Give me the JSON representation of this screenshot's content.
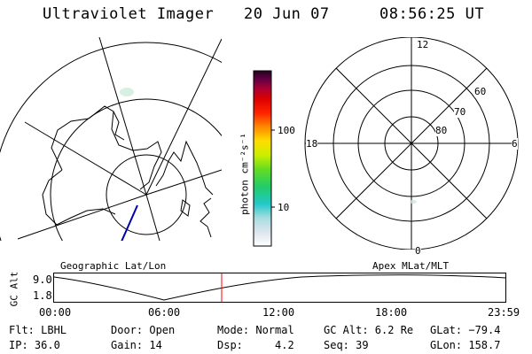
{
  "header": {
    "title": "Ultraviolet Imager",
    "date": "20 Jun 07",
    "time": "08:56:25 UT"
  },
  "colorbar": {
    "unit_label": "photon cm⁻²s⁻¹",
    "ticks": [
      "100",
      "10"
    ]
  },
  "left_panel": {
    "caption": "Geographic Lat/Lon"
  },
  "right_panel": {
    "caption": "Apex MLat/MLT",
    "mlt_labels": {
      "top": "12",
      "left": "18",
      "right": "6",
      "bottom": "0"
    },
    "lat_labels": [
      "60",
      "70",
      "80"
    ]
  },
  "timeline": {
    "ylabel": "GC Alt",
    "ytick_high": "9.0",
    "ytick_low": "1.8",
    "xticks": [
      "00:00",
      "06:00",
      "12:00",
      "18:00",
      "23:59"
    ],
    "marker_color": "#ff0000"
  },
  "info": [
    [
      {
        "label": "Flt: LBHL"
      },
      {
        "label": "IP: 36.0"
      }
    ],
    [
      {
        "label": "Door: Open"
      },
      {
        "label": "Gain: 14"
      }
    ],
    [
      {
        "label": "Mode: Normal"
      },
      {
        "label": "Dsp:     4.2"
      }
    ],
    [
      {
        "label": "GC Alt: 6.2 Re"
      },
      {
        "label": "Seq: 39"
      }
    ],
    [
      {
        "label": "GLat: −79.4"
      },
      {
        "label": "GLon: 158.7"
      }
    ]
  ]
}
